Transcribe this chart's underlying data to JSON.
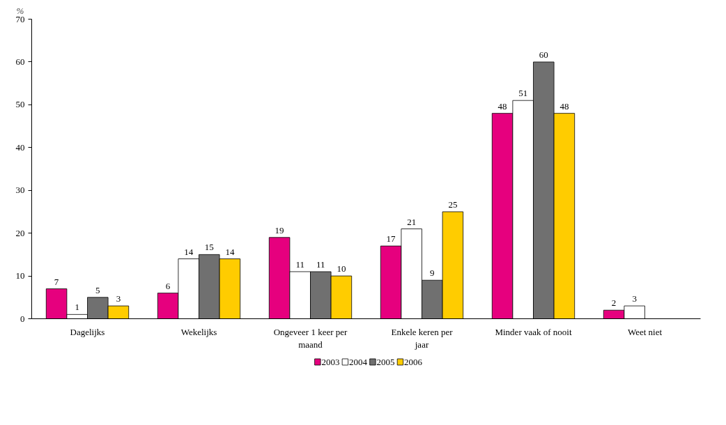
{
  "chart_data": {
    "type": "bar",
    "ylabel": "%",
    "categories": [
      "Dagelijks",
      "Wekelijks",
      "Ongeveer 1 keer per maand",
      "Enkele keren per jaar",
      "Minder vaak of nooit",
      "Weet niet"
    ],
    "series": [
      {
        "name": "2003",
        "color": "#e6007e",
        "values": [
          7,
          6,
          19,
          17,
          48,
          2
        ]
      },
      {
        "name": "2004",
        "color": "#ffffff",
        "values": [
          1,
          14,
          11,
          21,
          51,
          3
        ]
      },
      {
        "name": "2005",
        "color": "#707070",
        "values": [
          5,
          15,
          11,
          9,
          60,
          null
        ]
      },
      {
        "name": "2006",
        "color": "#ffcc00",
        "values": [
          3,
          14,
          10,
          25,
          48,
          null
        ]
      }
    ],
    "ylim": [
      0,
      70
    ],
    "yticks": [
      0,
      10,
      20,
      30,
      40,
      50,
      60,
      70
    ],
    "data_labels": true,
    "legend": "bottom",
    "grid": false
  }
}
